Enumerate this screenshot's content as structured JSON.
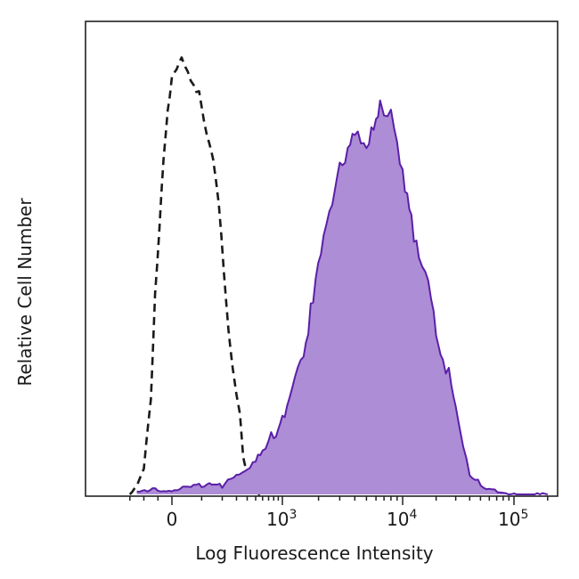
{
  "chart_data": {
    "type": "area",
    "title": "",
    "xlabel": "Log Fluorescence Intensity",
    "ylabel": "Relative Cell Number",
    "x_scale": "biexponential",
    "xlim": [
      -400,
      250000
    ],
    "ylim": [
      0,
      100
    ],
    "x_ticks": [
      {
        "value": 0,
        "base": "0",
        "exp": ""
      },
      {
        "value": 1000,
        "base": "10",
        "exp": "3"
      },
      {
        "value": 10000,
        "base": "10",
        "exp": "4"
      },
      {
        "value": 100000,
        "base": "10",
        "exp": "5"
      }
    ],
    "grid": false,
    "legend": "none",
    "series": [
      {
        "style": "dashed",
        "color": "#1a1a1a",
        "fill": "none",
        "x": [
          -300,
          -250,
          -200,
          -150,
          -120,
          -90,
          -60,
          -30,
          0,
          30,
          60,
          90,
          120,
          150,
          180,
          210,
          240,
          270,
          300,
          330,
          360,
          400,
          440,
          480,
          520,
          560
        ],
        "y": [
          0,
          2,
          6,
          22,
          45,
          60,
          75,
          85,
          93,
          97,
          92,
          90,
          82,
          76,
          66,
          50,
          38,
          28,
          22,
          18,
          8,
          4,
          2,
          1,
          0,
          0
        ]
      },
      {
        "style": "solid",
        "color": "#5b1fa8",
        "fill": "#ad8dd6",
        "x": [
          -250,
          -100,
          0,
          100,
          200,
          300,
          400,
          500,
          600,
          700,
          800,
          900,
          1000,
          1200,
          1500,
          1800,
          2200,
          2600,
          3000,
          3500,
          4000,
          4500,
          5000,
          5500,
          6000,
          6500,
          7000,
          7500,
          8000,
          9000,
          10000,
          11000,
          12000,
          14000,
          16000,
          18000,
          20000,
          23000,
          26000,
          30000,
          35000,
          40000,
          60000,
          100000,
          200000
        ],
        "y": [
          1,
          1,
          1,
          2,
          2,
          4,
          5,
          7,
          9,
          11,
          13,
          16,
          18,
          26,
          34,
          44,
          55,
          63,
          72,
          75,
          80,
          78,
          80,
          83,
          85,
          90,
          88,
          82,
          84,
          78,
          70,
          65,
          60,
          56,
          50,
          46,
          38,
          32,
          26,
          18,
          10,
          4,
          1,
          0,
          0
        ]
      }
    ]
  }
}
